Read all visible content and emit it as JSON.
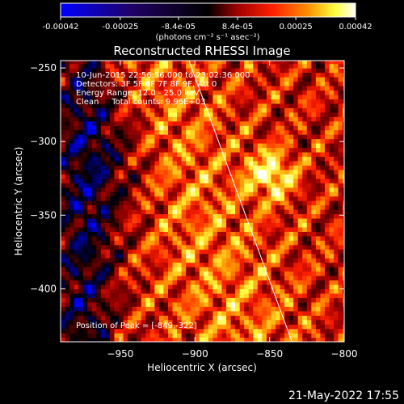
{
  "colorbar": {
    "ticks": [
      "-0.00042",
      "-0.00025",
      "-8.4e-05",
      "8.4e-05",
      "0.00025",
      "0.00042"
    ],
    "tick_values": [
      -0.00042,
      -0.00025,
      -8.4e-05,
      8.4e-05,
      0.00025,
      0.00042
    ],
    "range": [
      -0.00042,
      0.00042
    ],
    "units": "(photons cm⁻² s⁻¹ asec⁻²)",
    "colors": [
      "#0000ff",
      "#000000",
      "#a00000",
      "#ff2000",
      "#ff9000",
      "#ffff40",
      "#ffffff"
    ]
  },
  "annotation": {
    "time": "10-Jun-2015 22:56:56.000 to 23:02:36.000",
    "detectors": "Detectors: 3F 5F 6F 7F 8F 9F, Att 0",
    "energy": "Energy Range: 12.0 - 25.0 keV",
    "clean": "Clean     Total counts: 9.96E+03",
    "peak": "Position of Peak = [-849,-322]"
  },
  "date_stamp": "21-May-2022 17:55",
  "chart_data": {
    "type": "heatmap",
    "title": "Reconstructed RHESSI Image",
    "xlabel": "Heliocentric X (arcsec)",
    "ylabel": "Heliocentric Y (arcsec)",
    "xlim": [
      -990,
      -800
    ],
    "ylim": [
      -436,
      -245
    ],
    "x_ticks": [
      -950,
      -900,
      -850,
      -800
    ],
    "y_ticks": [
      -250,
      -300,
      -350,
      -400
    ],
    "x_tick_labels": [
      "−950",
      "−900",
      "−850",
      "−800"
    ],
    "y_tick_labels": [
      "−250",
      "−300",
      "−350",
      "−400"
    ],
    "peak": {
      "x": -849,
      "y": -322
    },
    "limb_line": [
      {
        "x": -904,
        "y": -245
      },
      {
        "x": -835,
        "y": -436
      }
    ],
    "line_color": "#ffffff"
  }
}
